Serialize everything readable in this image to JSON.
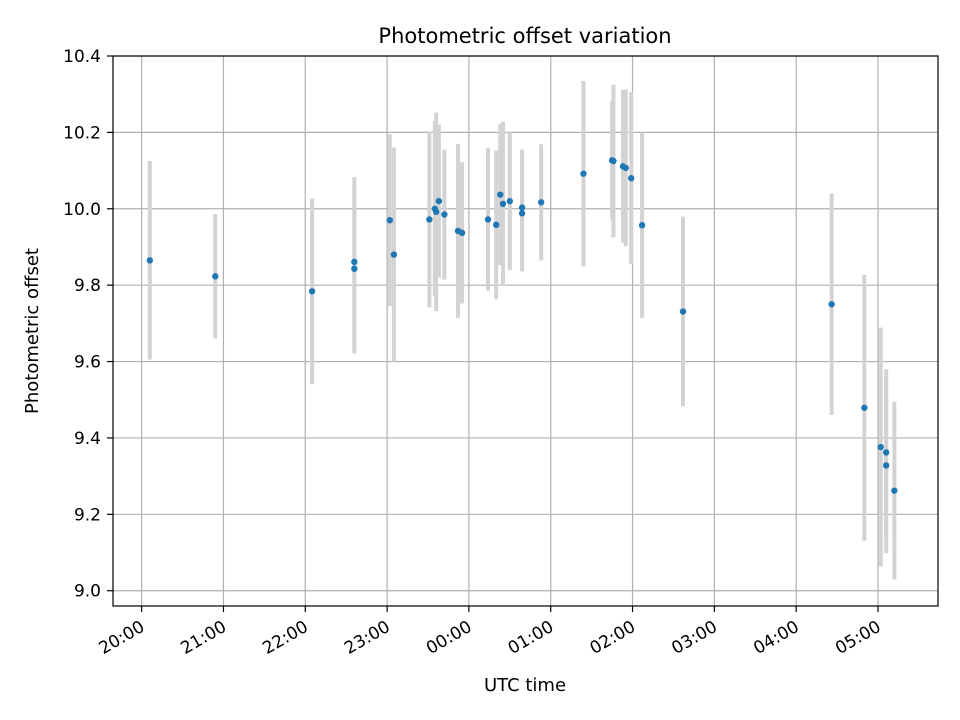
{
  "chart_data": {
    "type": "scatter",
    "title": "Photometric offset variation",
    "xlabel": "UTC time",
    "ylabel": "Photometric offset",
    "x_axis_kind": "time",
    "xlim": [
      "19:39",
      "05:44"
    ],
    "ylim": [
      8.96,
      10.4
    ],
    "grid": true,
    "yticks": [
      9.0,
      9.2,
      9.4,
      9.6,
      9.8,
      10.0,
      10.2,
      10.4
    ],
    "xticks": [
      "20:00",
      "21:00",
      "22:00",
      "23:00",
      "00:00",
      "01:00",
      "02:00",
      "03:00",
      "04:00",
      "05:00"
    ],
    "colors": {
      "point": "#1f77b4",
      "errorbar": "#d3d3d3",
      "grid": "#b0b0b0"
    },
    "points": [
      {
        "time": "20:06",
        "y": 9.865,
        "err": 0.26
      },
      {
        "time": "20:54",
        "y": 9.823,
        "err": 0.163
      },
      {
        "time": "22:05",
        "y": 9.784,
        "err": 0.243
      },
      {
        "time": "22:36",
        "y": 9.861,
        "err": 0.222
      },
      {
        "time": "22:36",
        "y": 9.843,
        "err": 0.222
      },
      {
        "time": "23:02",
        "y": 9.97,
        "err": 0.225
      },
      {
        "time": "23:05",
        "y": 9.88,
        "err": 0.28
      },
      {
        "time": "23:31",
        "y": 9.972,
        "err": 0.23
      },
      {
        "time": "23:35",
        "y": 10.0,
        "err": 0.23
      },
      {
        "time": "23:36",
        "y": 9.992,
        "err": 0.26
      },
      {
        "time": "23:38",
        "y": 10.02,
        "err": 0.2
      },
      {
        "time": "23:42",
        "y": 9.985,
        "err": 0.17
      },
      {
        "time": "23:52",
        "y": 9.942,
        "err": 0.228
      },
      {
        "time": "23:55",
        "y": 9.937,
        "err": 0.185
      },
      {
        "time": "00:14",
        "y": 9.972,
        "err": 0.187
      },
      {
        "time": "00:20",
        "y": 9.958,
        "err": 0.195
      },
      {
        "time": "00:23",
        "y": 10.037,
        "err": 0.185
      },
      {
        "time": "00:25",
        "y": 10.013,
        "err": 0.215
      },
      {
        "time": "00:30",
        "y": 10.02,
        "err": 0.18
      },
      {
        "time": "00:39",
        "y": 10.003,
        "err": 0.152
      },
      {
        "time": "00:39",
        "y": 9.988,
        "err": 0.152
      },
      {
        "time": "00:53",
        "y": 10.017,
        "err": 0.152
      },
      {
        "time": "01:24",
        "y": 10.092,
        "err": 0.243
      },
      {
        "time": "01:45",
        "y": 10.127,
        "err": 0.155
      },
      {
        "time": "01:46",
        "y": 10.125,
        "err": 0.2
      },
      {
        "time": "01:53",
        "y": 10.111,
        "err": 0.2
      },
      {
        "time": "01:55",
        "y": 10.107,
        "err": 0.205
      },
      {
        "time": "01:59",
        "y": 10.08,
        "err": 0.225
      },
      {
        "time": "02:07",
        "y": 9.957,
        "err": 0.243
      },
      {
        "time": "02:37",
        "y": 9.731,
        "err": 0.248
      },
      {
        "time": "04:26",
        "y": 9.75,
        "err": 0.29
      },
      {
        "time": "04:50",
        "y": 9.479,
        "err": 0.348
      },
      {
        "time": "05:02",
        "y": 9.376,
        "err": 0.313
      },
      {
        "time": "05:06",
        "y": 9.362,
        "err": 0.218
      },
      {
        "time": "05:06",
        "y": 9.328,
        "err": 0.23
      },
      {
        "time": "05:12",
        "y": 9.262,
        "err": 0.233
      }
    ]
  }
}
